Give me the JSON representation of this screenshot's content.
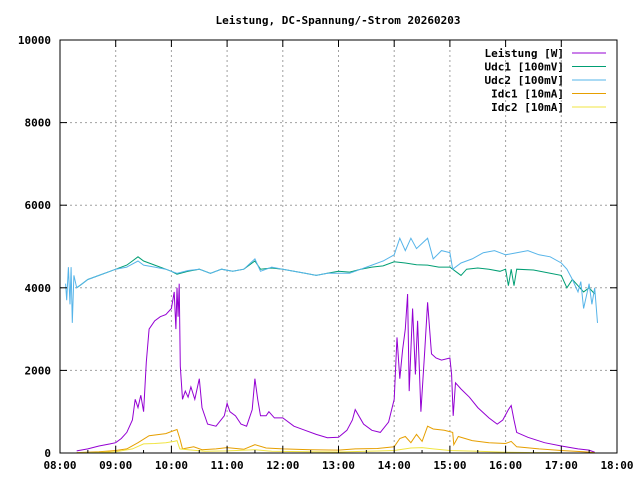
{
  "chart_data": {
    "type": "line",
    "title": "Leistung, DC-Spannung/-Strom 20260203",
    "xlabel": "",
    "ylabel": "",
    "xlim": [
      8,
      18
    ],
    "ylim": [
      0,
      10000
    ],
    "grid": true,
    "legend_position": "top-right",
    "x_ticks": [
      {
        "value": 8,
        "label": "08:00"
      },
      {
        "value": 9,
        "label": "09:00"
      },
      {
        "value": 10,
        "label": "10:00"
      },
      {
        "value": 11,
        "label": "11:00"
      },
      {
        "value": 12,
        "label": "12:00"
      },
      {
        "value": 13,
        "label": "13:00"
      },
      {
        "value": 14,
        "label": "14:00"
      },
      {
        "value": 15,
        "label": "15:00"
      },
      {
        "value": 16,
        "label": "16:00"
      },
      {
        "value": 17,
        "label": "17:00"
      },
      {
        "value": 18,
        "label": "18:00"
      }
    ],
    "y_ticks": [
      {
        "value": 0,
        "label": "0"
      },
      {
        "value": 2000,
        "label": "2000"
      },
      {
        "value": 4000,
        "label": "4000"
      },
      {
        "value": 6000,
        "label": "6000"
      },
      {
        "value": 8000,
        "label": "8000"
      },
      {
        "value": 10000,
        "label": "10000"
      }
    ],
    "series": [
      {
        "name": "Leistung [W]",
        "color": "#9400d3",
        "points": [
          [
            8.3,
            50
          ],
          [
            8.5,
            100
          ],
          [
            8.7,
            170
          ],
          [
            8.9,
            220
          ],
          [
            9.0,
            250
          ],
          [
            9.1,
            350
          ],
          [
            9.2,
            500
          ],
          [
            9.3,
            800
          ],
          [
            9.35,
            1300
          ],
          [
            9.4,
            1100
          ],
          [
            9.45,
            1400
          ],
          [
            9.5,
            1000
          ],
          [
            9.55,
            2200
          ],
          [
            9.6,
            3000
          ],
          [
            9.7,
            3200
          ],
          [
            9.8,
            3300
          ],
          [
            9.9,
            3350
          ],
          [
            10.0,
            3500
          ],
          [
            10.05,
            3900
          ],
          [
            10.08,
            3000
          ],
          [
            10.1,
            4000
          ],
          [
            10.12,
            3300
          ],
          [
            10.14,
            4100
          ],
          [
            10.16,
            2100
          ],
          [
            10.2,
            1300
          ],
          [
            10.25,
            1500
          ],
          [
            10.3,
            1350
          ],
          [
            10.35,
            1600
          ],
          [
            10.42,
            1300
          ],
          [
            10.5,
            1800
          ],
          [
            10.55,
            1100
          ],
          [
            10.65,
            700
          ],
          [
            10.8,
            650
          ],
          [
            10.95,
            900
          ],
          [
            11.0,
            1200
          ],
          [
            11.05,
            1000
          ],
          [
            11.15,
            900
          ],
          [
            11.25,
            700
          ],
          [
            11.35,
            650
          ],
          [
            11.45,
            1050
          ],
          [
            11.5,
            1800
          ],
          [
            11.55,
            1300
          ],
          [
            11.6,
            900
          ],
          [
            11.7,
            900
          ],
          [
            11.75,
            1000
          ],
          [
            11.85,
            850
          ],
          [
            12.0,
            850
          ],
          [
            12.2,
            650
          ],
          [
            12.4,
            550
          ],
          [
            12.6,
            450
          ],
          [
            12.8,
            370
          ],
          [
            13.0,
            380
          ],
          [
            13.15,
            550
          ],
          [
            13.25,
            800
          ],
          [
            13.3,
            1050
          ],
          [
            13.45,
            700
          ],
          [
            13.6,
            550
          ],
          [
            13.75,
            500
          ],
          [
            13.9,
            750
          ],
          [
            14.0,
            1300
          ],
          [
            14.05,
            2800
          ],
          [
            14.1,
            1800
          ],
          [
            14.15,
            2500
          ],
          [
            14.2,
            3000
          ],
          [
            14.24,
            3850
          ],
          [
            14.27,
            1500
          ],
          [
            14.33,
            3500
          ],
          [
            14.38,
            1900
          ],
          [
            14.42,
            3200
          ],
          [
            14.48,
            1000
          ],
          [
            14.55,
            2500
          ],
          [
            14.6,
            3650
          ],
          [
            14.67,
            2400
          ],
          [
            14.75,
            2300
          ],
          [
            14.85,
            2250
          ],
          [
            15.0,
            2300
          ],
          [
            15.03,
            1900
          ],
          [
            15.06,
            900
          ],
          [
            15.1,
            1700
          ],
          [
            15.2,
            1550
          ],
          [
            15.35,
            1350
          ],
          [
            15.5,
            1100
          ],
          [
            15.7,
            850
          ],
          [
            15.85,
            700
          ],
          [
            15.95,
            800
          ],
          [
            16.05,
            1050
          ],
          [
            16.1,
            1150
          ],
          [
            16.15,
            800
          ],
          [
            16.2,
            500
          ],
          [
            16.4,
            380
          ],
          [
            16.7,
            250
          ],
          [
            17.0,
            170
          ],
          [
            17.3,
            100
          ],
          [
            17.5,
            70
          ],
          [
            17.6,
            20
          ]
        ]
      },
      {
        "name": "Udc1 [100mV]",
        "color": "#009e73",
        "points": [
          [
            8.3,
            4000
          ],
          [
            8.4,
            4100
          ],
          [
            8.5,
            4200
          ],
          [
            8.7,
            4300
          ],
          [
            8.9,
            4400
          ],
          [
            9.0,
            4450
          ],
          [
            9.2,
            4550
          ],
          [
            9.3,
            4650
          ],
          [
            9.4,
            4750
          ],
          [
            9.5,
            4650
          ],
          [
            9.7,
            4550
          ],
          [
            9.9,
            4450
          ],
          [
            10.0,
            4400
          ],
          [
            10.1,
            4330
          ],
          [
            10.3,
            4400
          ],
          [
            10.5,
            4450
          ],
          [
            10.7,
            4350
          ],
          [
            10.9,
            4450
          ],
          [
            11.1,
            4400
          ],
          [
            11.3,
            4450
          ],
          [
            11.5,
            4650
          ],
          [
            11.6,
            4450
          ],
          [
            11.8,
            4480
          ],
          [
            12.0,
            4450
          ],
          [
            12.2,
            4400
          ],
          [
            12.4,
            4350
          ],
          [
            12.6,
            4300
          ],
          [
            12.8,
            4350
          ],
          [
            13.0,
            4400
          ],
          [
            13.2,
            4380
          ],
          [
            13.4,
            4450
          ],
          [
            13.6,
            4500
          ],
          [
            13.8,
            4530
          ],
          [
            14.0,
            4630
          ],
          [
            14.2,
            4600
          ],
          [
            14.4,
            4560
          ],
          [
            14.6,
            4550
          ],
          [
            14.8,
            4500
          ],
          [
            15.0,
            4500
          ],
          [
            15.1,
            4400
          ],
          [
            15.2,
            4300
          ],
          [
            15.3,
            4450
          ],
          [
            15.5,
            4480
          ],
          [
            15.7,
            4450
          ],
          [
            15.9,
            4400
          ],
          [
            16.0,
            4450
          ],
          [
            16.05,
            4050
          ],
          [
            16.1,
            4450
          ],
          [
            16.15,
            4050
          ],
          [
            16.2,
            4450
          ],
          [
            16.5,
            4430
          ],
          [
            16.8,
            4350
          ],
          [
            17.0,
            4300
          ],
          [
            17.1,
            4000
          ],
          [
            17.2,
            4200
          ],
          [
            17.3,
            4050
          ],
          [
            17.4,
            3900
          ],
          [
            17.5,
            4000
          ],
          [
            17.6,
            3850
          ]
        ]
      },
      {
        "name": "Udc2 [100mV]",
        "color": "#56b4e9",
        "points": [
          [
            8.1,
            4100
          ],
          [
            8.12,
            3700
          ],
          [
            8.15,
            4500
          ],
          [
            8.18,
            3600
          ],
          [
            8.2,
            4500
          ],
          [
            8.22,
            3150
          ],
          [
            8.25,
            4300
          ],
          [
            8.3,
            4000
          ],
          [
            8.4,
            4100
          ],
          [
            8.5,
            4200
          ],
          [
            8.7,
            4300
          ],
          [
            8.9,
            4400
          ],
          [
            9.0,
            4450
          ],
          [
            9.2,
            4500
          ],
          [
            9.4,
            4650
          ],
          [
            9.5,
            4550
          ],
          [
            9.7,
            4500
          ],
          [
            9.9,
            4450
          ],
          [
            10.0,
            4400
          ],
          [
            10.1,
            4350
          ],
          [
            10.3,
            4420
          ],
          [
            10.5,
            4450
          ],
          [
            10.7,
            4350
          ],
          [
            10.9,
            4450
          ],
          [
            11.1,
            4400
          ],
          [
            11.3,
            4450
          ],
          [
            11.5,
            4700
          ],
          [
            11.6,
            4400
          ],
          [
            11.8,
            4500
          ],
          [
            12.0,
            4450
          ],
          [
            12.2,
            4400
          ],
          [
            12.4,
            4350
          ],
          [
            12.6,
            4300
          ],
          [
            12.8,
            4350
          ],
          [
            13.0,
            4350
          ],
          [
            13.2,
            4350
          ],
          [
            13.4,
            4450
          ],
          [
            13.6,
            4550
          ],
          [
            13.8,
            4650
          ],
          [
            14.0,
            4800
          ],
          [
            14.1,
            5200
          ],
          [
            14.2,
            4900
          ],
          [
            14.3,
            5200
          ],
          [
            14.4,
            4950
          ],
          [
            14.6,
            5200
          ],
          [
            14.7,
            4700
          ],
          [
            14.85,
            4900
          ],
          [
            15.0,
            4850
          ],
          [
            15.05,
            4450
          ],
          [
            15.2,
            4600
          ],
          [
            15.4,
            4700
          ],
          [
            15.6,
            4850
          ],
          [
            15.8,
            4900
          ],
          [
            16.0,
            4800
          ],
          [
            16.2,
            4850
          ],
          [
            16.4,
            4900
          ],
          [
            16.6,
            4800
          ],
          [
            16.8,
            4750
          ],
          [
            17.0,
            4600
          ],
          [
            17.1,
            4450
          ],
          [
            17.2,
            4200
          ],
          [
            17.3,
            3900
          ],
          [
            17.35,
            4150
          ],
          [
            17.4,
            3500
          ],
          [
            17.5,
            4100
          ],
          [
            17.55,
            3600
          ],
          [
            17.6,
            4000
          ],
          [
            17.65,
            3150
          ]
        ]
      },
      {
        "name": "Idc1 [10mA]",
        "color": "#e69f00",
        "points": [
          [
            8.3,
            10
          ],
          [
            8.7,
            30
          ],
          [
            9.0,
            60
          ],
          [
            9.2,
            100
          ],
          [
            9.4,
            250
          ],
          [
            9.6,
            420
          ],
          [
            9.9,
            470
          ],
          [
            10.0,
            520
          ],
          [
            10.1,
            570
          ],
          [
            10.15,
            350
          ],
          [
            10.2,
            100
          ],
          [
            10.4,
            150
          ],
          [
            10.55,
            80
          ],
          [
            10.8,
            100
          ],
          [
            11.0,
            130
          ],
          [
            11.3,
            90
          ],
          [
            11.5,
            200
          ],
          [
            11.7,
            120
          ],
          [
            12.0,
            100
          ],
          [
            12.5,
            80
          ],
          [
            13.0,
            70
          ],
          [
            13.3,
            100
          ],
          [
            13.7,
            110
          ],
          [
            14.0,
            150
          ],
          [
            14.1,
            350
          ],
          [
            14.2,
            400
          ],
          [
            14.3,
            250
          ],
          [
            14.4,
            450
          ],
          [
            14.5,
            280
          ],
          [
            14.6,
            650
          ],
          [
            14.7,
            580
          ],
          [
            14.9,
            550
          ],
          [
            15.05,
            500
          ],
          [
            15.07,
            200
          ],
          [
            15.15,
            400
          ],
          [
            15.4,
            300
          ],
          [
            15.7,
            250
          ],
          [
            16.0,
            230
          ],
          [
            16.1,
            280
          ],
          [
            16.2,
            150
          ],
          [
            16.6,
            100
          ],
          [
            17.0,
            60
          ],
          [
            17.4,
            30
          ],
          [
            17.6,
            10
          ]
        ]
      },
      {
        "name": "Idc2 [10mA]",
        "color": "#f0e442",
        "points": [
          [
            8.3,
            5
          ],
          [
            8.7,
            15
          ],
          [
            9.0,
            30
          ],
          [
            9.3,
            100
          ],
          [
            9.5,
            220
          ],
          [
            9.7,
            230
          ],
          [
            9.9,
            250
          ],
          [
            10.05,
            280
          ],
          [
            10.1,
            300
          ],
          [
            10.15,
            100
          ],
          [
            10.3,
            80
          ],
          [
            10.6,
            40
          ],
          [
            11.0,
            50
          ],
          [
            11.5,
            80
          ],
          [
            11.8,
            40
          ],
          [
            12.5,
            30
          ],
          [
            13.0,
            25
          ],
          [
            13.5,
            40
          ],
          [
            14.0,
            60
          ],
          [
            14.3,
            120
          ],
          [
            14.5,
            130
          ],
          [
            14.7,
            100
          ],
          [
            15.0,
            60
          ],
          [
            15.5,
            40
          ],
          [
            16.0,
            20
          ],
          [
            16.5,
            10
          ],
          [
            17.0,
            5
          ]
        ]
      }
    ]
  }
}
